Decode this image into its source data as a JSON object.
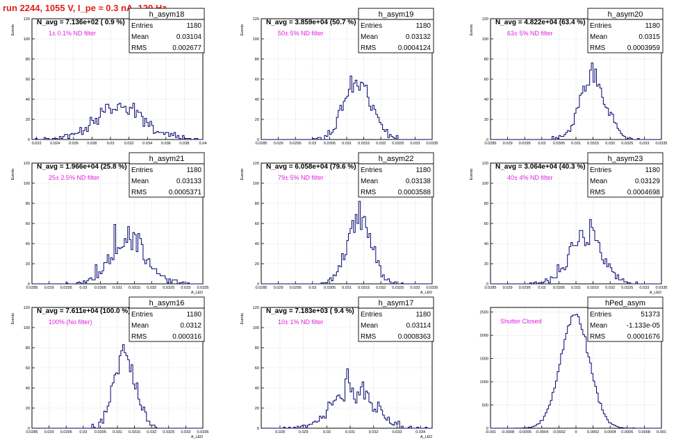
{
  "run_title": "run 2244,  1055 V, I_pe ≈ 0.3 nA, 120 Hz",
  "colors": {
    "run_title": "#e0201a",
    "annotation": "#e020e0",
    "histogram": "#00006e"
  },
  "chart_data": [
    {
      "type": "histogram",
      "name": "h_asym18",
      "navg": "N_avg = 7.136e+02 ( 0.9 %)",
      "note": "1± 0.1% ND filter",
      "stats": [
        [
          "Entries",
          "1180"
        ],
        [
          "Mean",
          "0.03104"
        ],
        [
          "RMS",
          "0.002677"
        ]
      ],
      "ylabel": "Events",
      "xlabel": "",
      "xlim": [
        0.0215,
        0.04
      ],
      "ylim": [
        0,
        120
      ],
      "xticks": [
        "0.022",
        "0.024",
        "0.026",
        "0.028",
        "0.03",
        "0.032",
        "0.034",
        "0.036",
        "0.038",
        "0.04"
      ],
      "xtick_values": [
        0.022,
        0.024,
        0.026,
        0.028,
        0.03,
        0.032,
        0.034,
        0.036,
        0.038,
        0.04
      ],
      "yticks": [
        "0",
        "20",
        "40",
        "60",
        "80",
        "100",
        "120"
      ],
      "ytick_values": [
        0,
        20,
        40,
        60,
        80,
        100,
        120
      ],
      "mean": 0.03104,
      "rms": 0.002677,
      "entries": 1180
    },
    {
      "type": "histogram",
      "name": "h_asym19",
      "navg": "N_avg = 3.859e+04 (50.7 %)",
      "note": "50± 5% ND filter",
      "stats": [
        [
          "Entries",
          "1180"
        ],
        [
          "Mean",
          "0.03132"
        ],
        [
          "RMS",
          "0.0004124"
        ]
      ],
      "ylabel": "Events",
      "xlabel": "",
      "xlim": [
        0.0285,
        0.0335
      ],
      "ylim": [
        0,
        120
      ],
      "xticks": [
        "0.0285",
        "0.029",
        "0.0295",
        "0.03",
        "0.0305",
        "0.031",
        "0.0315",
        "0.032",
        "0.0325",
        "0.033",
        "0.0335"
      ],
      "xtick_values": [
        0.0285,
        0.029,
        0.0295,
        0.03,
        0.0305,
        0.031,
        0.0315,
        0.032,
        0.0325,
        0.033,
        0.0335
      ],
      "yticks": [
        "0",
        "20",
        "40",
        "60",
        "80",
        "100",
        "120"
      ],
      "ytick_values": [
        0,
        20,
        40,
        60,
        80,
        100,
        120
      ],
      "mean": 0.03132,
      "rms": 0.0004124,
      "entries": 1180
    },
    {
      "type": "histogram",
      "name": "h_asym20",
      "navg": "N_avg = 4.822e+04 (63.4 %)",
      "note": "63± 5% ND filter",
      "stats": [
        [
          "Entries",
          "1180"
        ],
        [
          "Mean",
          "0.0315"
        ],
        [
          "RMS",
          "0.0003959"
        ]
      ],
      "ylabel": "Events",
      "xlabel": "",
      "xlim": [
        0.0285,
        0.0335
      ],
      "ylim": [
        0,
        120
      ],
      "xticks": [
        "0.0285",
        "0.029",
        "0.0295",
        "0.03",
        "0.0305",
        "0.031",
        "0.0315",
        "0.032",
        "0.0325",
        "0.033",
        "0.0335"
      ],
      "xtick_values": [
        0.0285,
        0.029,
        0.0295,
        0.03,
        0.0305,
        0.031,
        0.0315,
        0.032,
        0.0325,
        0.033,
        0.0335
      ],
      "yticks": [
        "0",
        "20",
        "40",
        "60",
        "80",
        "100",
        "120"
      ],
      "ytick_values": [
        0,
        20,
        40,
        60,
        80,
        100,
        120
      ],
      "mean": 0.0315,
      "rms": 0.0003959,
      "entries": 1180
    },
    {
      "type": "histogram",
      "name": "h_asym21",
      "navg": "N_avg = 1.966e+04 (25.8 %)",
      "note": "25± 2.5% ND filter",
      "stats": [
        [
          "Entries",
          "1180"
        ],
        [
          "Mean",
          "0.03133"
        ],
        [
          "RMS",
          "0.0005371"
        ]
      ],
      "ylabel": "Events",
      "xlabel": "A_LED",
      "xlim": [
        0.0285,
        0.0335
      ],
      "ylim": [
        0,
        120
      ],
      "xticks": [
        "0.0285",
        "0.029",
        "0.0295",
        "0.03",
        "0.0305",
        "0.031",
        "0.0315",
        "0.032",
        "0.0325",
        "0.033",
        "0.0335"
      ],
      "xtick_values": [
        0.0285,
        0.029,
        0.0295,
        0.03,
        0.0305,
        0.031,
        0.0315,
        0.032,
        0.0325,
        0.033,
        0.0335
      ],
      "yticks": [
        "0",
        "20",
        "40",
        "60",
        "80",
        "100",
        "120"
      ],
      "ytick_values": [
        0,
        20,
        40,
        60,
        80,
        100,
        120
      ],
      "mean": 0.03133,
      "rms": 0.0005371,
      "entries": 1180
    },
    {
      "type": "histogram",
      "name": "h_asym22",
      "navg": "N_avg = 6.058e+04 (79.6 %)",
      "note": "79± 5% ND filter",
      "stats": [
        [
          "Entries",
          "1180"
        ],
        [
          "Mean",
          "0.03138"
        ],
        [
          "RMS",
          "0.0003588"
        ]
      ],
      "ylabel": "Events",
      "xlabel": "A_LED",
      "xlim": [
        0.0285,
        0.0335
      ],
      "ylim": [
        0,
        120
      ],
      "xticks": [
        "0.0285",
        "0.029",
        "0.0295",
        "0.03",
        "0.0305",
        "0.031",
        "0.0315",
        "0.032",
        "0.0325",
        "0.033",
        "0.0335"
      ],
      "xtick_values": [
        0.0285,
        0.029,
        0.0295,
        0.03,
        0.0305,
        0.031,
        0.0315,
        0.032,
        0.0325,
        0.033,
        0.0335
      ],
      "yticks": [
        "0",
        "20",
        "40",
        "60",
        "80",
        "100",
        "120"
      ],
      "ytick_values": [
        0,
        20,
        40,
        60,
        80,
        100,
        120
      ],
      "mean": 0.03138,
      "rms": 0.0003588,
      "entries": 1180
    },
    {
      "type": "histogram",
      "name": "h_asym23",
      "navg": "N_avg = 3.064e+04 (40.3 %)",
      "note": "40± 4% ND filter",
      "stats": [
        [
          "Entries",
          "1180"
        ],
        [
          "Mean",
          "0.03129"
        ],
        [
          "RMS",
          "0.0004698"
        ]
      ],
      "ylabel": "Events",
      "xlabel": "A_LED",
      "xlim": [
        0.0285,
        0.0335
      ],
      "ylim": [
        0,
        120
      ],
      "xticks": [
        "0.0285",
        "0.029",
        "0.0295",
        "0.03",
        "0.0305",
        "0.031",
        "0.0315",
        "0.032",
        "0.0325",
        "0.033",
        "0.0335"
      ],
      "xtick_values": [
        0.0285,
        0.029,
        0.0295,
        0.03,
        0.0305,
        0.031,
        0.0315,
        0.032,
        0.0325,
        0.033,
        0.0335
      ],
      "yticks": [
        "0",
        "20",
        "40",
        "60",
        "80",
        "100",
        "120"
      ],
      "ytick_values": [
        0,
        20,
        40,
        60,
        80,
        100,
        120
      ],
      "mean": 0.03129,
      "rms": 0.0004698,
      "entries": 1180
    },
    {
      "type": "histogram",
      "name": "h_asym16",
      "navg": "N_avg = 7.611e+04 (100.0 %)",
      "note": "100% (No filter)",
      "stats": [
        [
          "Entries",
          "1180"
        ],
        [
          "Mean",
          "0.0312"
        ],
        [
          "RMS",
          "0.000316"
        ]
      ],
      "ylabel": "Events",
      "xlabel": "A_LED",
      "xlim": [
        0.0285,
        0.0335
      ],
      "ylim": [
        0,
        120
      ],
      "xticks": [
        "0.0285",
        "0.029",
        "0.0295",
        "0.03",
        "0.0305",
        "0.031",
        "0.0315",
        "0.032",
        "0.0325",
        "0.033",
        "0.0335"
      ],
      "xtick_values": [
        0.0285,
        0.029,
        0.0295,
        0.03,
        0.0305,
        0.031,
        0.0315,
        0.032,
        0.0325,
        0.033,
        0.0335
      ],
      "yticks": [
        "0",
        "20",
        "40",
        "60",
        "80",
        "100",
        "120"
      ],
      "ytick_values": [
        0,
        20,
        40,
        60,
        80,
        100,
        120
      ],
      "mean": 0.0312,
      "rms": 0.000316,
      "entries": 1180
    },
    {
      "type": "histogram",
      "name": "h_asym17",
      "navg": "N_avg = 7.183e+03 ( 9.4 %)",
      "note": "10± 1% ND filter",
      "stats": [
        [
          "Entries",
          "1180"
        ],
        [
          "Mean",
          "0.03114"
        ],
        [
          "RMS",
          "0.0008363"
        ]
      ],
      "ylabel": "Events",
      "xlabel": "A_LED",
      "xlim": [
        0.0272,
        0.0345
      ],
      "ylim": [
        0,
        120
      ],
      "xticks": [
        "0.028",
        "0.029",
        "0.03",
        "0.031",
        "0.032",
        "0.033",
        "0.034"
      ],
      "xtick_values": [
        0.028,
        0.029,
        0.03,
        0.031,
        0.032,
        0.033,
        0.034
      ],
      "yticks": [
        "0",
        "20",
        "40",
        "60",
        "80",
        "100",
        "120"
      ],
      "ytick_values": [
        0,
        20,
        40,
        60,
        80,
        100,
        120
      ],
      "mean": 0.03114,
      "rms": 0.0008363,
      "entries": 1180
    },
    {
      "type": "histogram",
      "name": "hPed_asym",
      "navg": "",
      "note": "Shutter Closed",
      "stats": [
        [
          "Entries",
          "51373"
        ],
        [
          "Mean",
          "-1.133e-05"
        ],
        [
          "RMS",
          "0.0001676"
        ]
      ],
      "ylabel": "",
      "xlabel": "",
      "xlim": [
        -0.001,
        0.001
      ],
      "ylim": [
        0,
        2600
      ],
      "xticks": [
        "-0.001",
        "-0.0008",
        "-0.0006",
        "-0.0004",
        "-0.0002",
        "0",
        "0.0002",
        "0.0004",
        "0.0006",
        "0.0008",
        "0.001"
      ],
      "xtick_values": [
        -0.001,
        -0.0008,
        -0.0006,
        -0.0004,
        -0.0002,
        0,
        0.0002,
        0.0004,
        0.0006,
        0.0008,
        0.001
      ],
      "yticks": [
        "0",
        "500",
        "1000",
        "1500",
        "2000",
        "2500"
      ],
      "ytick_values": [
        0,
        500,
        1000,
        1500,
        2000,
        2500
      ],
      "mean": -1.133e-05,
      "rms": 0.0001676,
      "entries": 51373
    }
  ]
}
